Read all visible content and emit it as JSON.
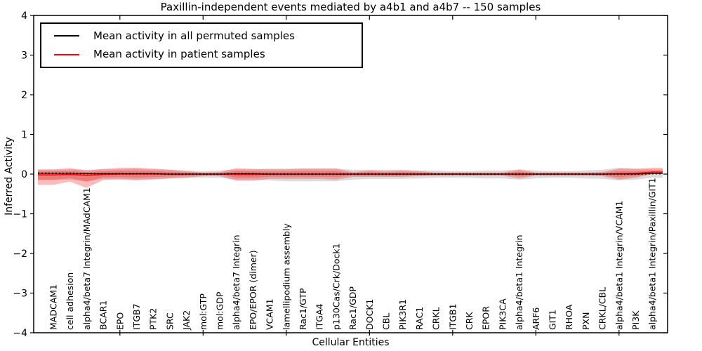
{
  "figure": {
    "title": "Paxillin-independent events mediated by a4b1 and a4b7 -- 150 samples",
    "xlabel": "Cellular Entities",
    "ylabel": "Inferred Activity"
  },
  "legend": {
    "entries": [
      {
        "label": "Mean activity in all permuted samples",
        "color": "#000000"
      },
      {
        "label": "Mean activity in patient samples",
        "color": "#ff0000"
      }
    ]
  },
  "chart_data": {
    "type": "line",
    "title": "Paxillin-independent events mediated by a4b1 and a4b7 -- 150 samples",
    "xlabel": "Cellular Entities",
    "ylabel": "Inferred Activity",
    "ylim": [
      -4,
      4
    ],
    "ytick_labels": [
      "4",
      "3",
      "2",
      "1",
      "0",
      "−1",
      "−2",
      "−3",
      "−4"
    ],
    "ytick_values": [
      4,
      3,
      2,
      1,
      0,
      -1,
      -2,
      -3,
      -4
    ],
    "grid": false,
    "legend_position": "upper left",
    "categories": [
      "MADCAM1",
      "cell adhesion",
      "alpha4/beta7 Integrin/MAdCAM1",
      "BCAR1",
      "EPO",
      "ITGB7",
      "PTK2",
      "SRC",
      "JAK2",
      "mol:GTP",
      "mol:GDP",
      "alpha4/beta7 Integrin",
      "EPO/EPOR (dimer)",
      "VCAM1",
      "lamellipodium assembly",
      "Rac1/GTP",
      "ITGA4",
      "p130Cas/Crk/Dock1",
      "Rac1/GDP",
      "DOCK1",
      "CBL",
      "PIK3R1",
      "RAC1",
      "CRKL",
      "ITGB1",
      "CRK",
      "EPOR",
      "PIK3CA",
      "alpha4/beta1 Integrin",
      "ARF6",
      "GIT1",
      "RHOA",
      "PXN",
      "CRKL/CBL",
      "alpha4/beta1 Integrin/VCAM1",
      "PI3K",
      "alpha4/beta1 Integrin/Paxillin/GIT1"
    ],
    "series": [
      {
        "name": "Mean activity in all permuted samples",
        "color": "#000000",
        "style": "dotted",
        "values": [
          0.02,
          0.02,
          0.01,
          0.01,
          0.01,
          0.01,
          0.01,
          0,
          0,
          0,
          0,
          0.01,
          0.01,
          0,
          0,
          0,
          0,
          0,
          0,
          0,
          0,
          0,
          0,
          0,
          0,
          0,
          0,
          0,
          0,
          0,
          0,
          0,
          0,
          0,
          0,
          0,
          0.01
        ]
      },
      {
        "name": "Mean activity in patient samples",
        "color": "#ff0000",
        "style": "solid",
        "values": [
          -0.02,
          -0.01,
          -0.03,
          -0.01,
          0,
          0,
          0,
          0,
          0,
          0,
          0,
          -0.01,
          -0.01,
          0,
          0,
          0,
          0,
          0,
          0,
          0,
          0,
          0,
          0,
          0,
          0,
          0,
          0,
          0,
          0,
          0,
          0,
          0,
          0,
          0,
          0.01,
          0.02,
          0.05
        ]
      }
    ],
    "bands": [
      {
        "name": "permuted-samples-range",
        "color": "rgba(110,110,110,0.25)",
        "upper": [
          0.11,
          0.12,
          0.11,
          0.12,
          0.12,
          0.14,
          0.12,
          0.11,
          0.09,
          0.07,
          0.09,
          0.12,
          0.12,
          0.14,
          0.14,
          0.14,
          0.14,
          0.14,
          0.11,
          0.11,
          0.11,
          0.11,
          0.09,
          0.09,
          0.07,
          0.07,
          0.09,
          0.09,
          0.12,
          0.09,
          0.07,
          0.07,
          0.09,
          0.11,
          0.16,
          0.14,
          0.12
        ],
        "lower": [
          -0.14,
          -0.14,
          -0.18,
          -0.12,
          -0.12,
          -0.14,
          -0.12,
          -0.11,
          -0.09,
          -0.09,
          -0.09,
          -0.14,
          -0.14,
          -0.16,
          -0.18,
          -0.18,
          -0.18,
          -0.18,
          -0.14,
          -0.12,
          -0.12,
          -0.12,
          -0.11,
          -0.09,
          -0.09,
          -0.09,
          -0.11,
          -0.11,
          -0.14,
          -0.11,
          -0.09,
          -0.09,
          -0.11,
          -0.12,
          -0.16,
          -0.14,
          -0.09
        ]
      },
      {
        "name": "patient-samples-range",
        "color": "rgba(255,40,40,0.32)",
        "upper": [
          0.12,
          0.15,
          0.09,
          0.13,
          0.16,
          0.16,
          0.14,
          0.11,
          0.07,
          0.04,
          0.05,
          0.15,
          0.13,
          0.12,
          0.12,
          0.14,
          0.14,
          0.14,
          0.05,
          0.09,
          0.07,
          0.09,
          0.07,
          0.04,
          0.04,
          0.04,
          0.04,
          0.04,
          0.11,
          0.04,
          0.04,
          0.04,
          0.04,
          0.05,
          0.14,
          0.13,
          0.16
        ],
        "lower": [
          -0.27,
          -0.19,
          -0.35,
          -0.15,
          -0.14,
          -0.16,
          -0.14,
          -0.11,
          -0.09,
          -0.05,
          -0.05,
          -0.17,
          -0.17,
          -0.12,
          -0.12,
          -0.12,
          -0.12,
          -0.14,
          -0.07,
          -0.07,
          -0.07,
          -0.07,
          -0.05,
          -0.04,
          -0.04,
          -0.04,
          -0.04,
          -0.04,
          -0.11,
          -0.04,
          -0.04,
          -0.04,
          -0.04,
          -0.05,
          -0.14,
          -0.09,
          0.0
        ]
      }
    ]
  }
}
